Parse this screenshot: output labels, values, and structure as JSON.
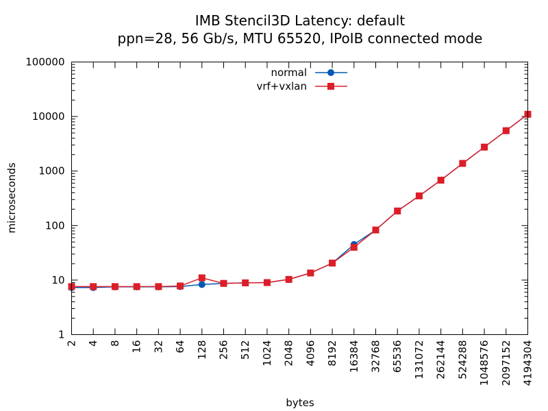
{
  "chart_data": {
    "type": "line",
    "title": "IMB Stencil3D Latency: default",
    "subtitle": "ppn=28, 56 Gb/s, MTU 65520, IPoIB connected mode",
    "xlabel": "bytes",
    "ylabel": "microseconds",
    "x_scale": "log2",
    "y_scale": "log10",
    "xlim": [
      2,
      4194304
    ],
    "ylim": [
      1,
      100000
    ],
    "y_ticks": [
      "1",
      "10",
      "100",
      "1000",
      "10000",
      "100000"
    ],
    "x_ticks": [
      "2",
      "4",
      "8",
      "16",
      "32",
      "64",
      "128",
      "256",
      "512",
      "1024",
      "2048",
      "4096",
      "8192",
      "16384",
      "32768",
      "65536",
      "131072",
      "262144",
      "524288",
      "1048576",
      "2097152",
      "4194304"
    ],
    "legend_position": "top-center",
    "series": [
      {
        "name": "normal",
        "color": "#005ab4",
        "marker": "circle",
        "x": [
          2,
          4,
          8,
          16,
          32,
          64,
          128,
          256,
          512,
          1024,
          2048,
          4096,
          8192,
          16384,
          32768,
          65536,
          131072,
          262144,
          524288,
          1048576,
          2097152,
          4194304
        ],
        "values": [
          7.3,
          7.3,
          7.5,
          7.5,
          7.5,
          7.6,
          8.3,
          8.7,
          8.9,
          9.0,
          10.3,
          13.5,
          20.5,
          45,
          83,
          185,
          350,
          680,
          1380,
          2750,
          5500,
          11000
        ]
      },
      {
        "name": "vrf+vxlan",
        "color": "#dc1e28",
        "marker": "square",
        "x": [
          2,
          4,
          8,
          16,
          32,
          64,
          128,
          256,
          512,
          1024,
          2048,
          4096,
          8192,
          16384,
          32768,
          65536,
          131072,
          262144,
          524288,
          1048576,
          2097152,
          4194304
        ],
        "values": [
          7.6,
          7.6,
          7.6,
          7.6,
          7.6,
          7.8,
          11.0,
          8.7,
          8.9,
          9.0,
          10.3,
          13.5,
          20.5,
          40,
          83,
          185,
          350,
          680,
          1380,
          2750,
          5500,
          11000
        ]
      }
    ]
  }
}
